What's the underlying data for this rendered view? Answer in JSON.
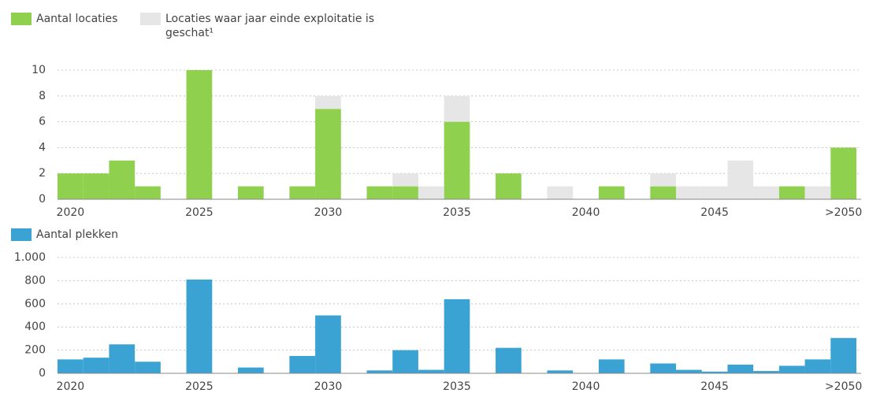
{
  "chart_data": [
    {
      "type": "bar",
      "stacked": true,
      "categories": [
        "2020",
        null,
        null,
        null,
        null,
        "2025",
        null,
        null,
        null,
        null,
        "2030",
        null,
        null,
        null,
        null,
        "2035",
        null,
        null,
        null,
        null,
        "2040",
        null,
        null,
        null,
        null,
        "2045",
        null,
        null,
        null,
        null,
        ">2050"
      ],
      "series": [
        {
          "name": "Aantal locaties",
          "color": "#8fd14f",
          "values": [
            2,
            2,
            3,
            1,
            0,
            10,
            0,
            1,
            0,
            1,
            7,
            0,
            1,
            1,
            0,
            6,
            0,
            2,
            0,
            0,
            0,
            1,
            0,
            1,
            0,
            0,
            0,
            0,
            1,
            0,
            4
          ]
        },
        {
          "name": "Locaties waar jaar einde exploitatie is geschat¹",
          "color": "#e6e6e6",
          "values": [
            0,
            0,
            0,
            0,
            0,
            0,
            0,
            0,
            0,
            0,
            1,
            0,
            0,
            1,
            1,
            2,
            0,
            0,
            0,
            1,
            0,
            0,
            0,
            1,
            1,
            1,
            3,
            1,
            0,
            1,
            0
          ]
        }
      ],
      "ylim": [
        0,
        10
      ],
      "yticks": [
        0,
        2,
        4,
        6,
        8,
        10
      ],
      "grid": true
    },
    {
      "type": "bar",
      "categories": [
        "2020",
        null,
        null,
        null,
        null,
        "2025",
        null,
        null,
        null,
        null,
        "2030",
        null,
        null,
        null,
        null,
        "2035",
        null,
        null,
        null,
        null,
        "2040",
        null,
        null,
        null,
        null,
        "2045",
        null,
        null,
        null,
        null,
        ">2050"
      ],
      "series": [
        {
          "name": "Aantal plekken",
          "color": "#3aa3d3",
          "values": [
            120,
            135,
            250,
            100,
            0,
            810,
            0,
            50,
            0,
            150,
            500,
            0,
            25,
            200,
            30,
            640,
            0,
            220,
            0,
            25,
            0,
            120,
            0,
            85,
            30,
            15,
            75,
            20,
            65,
            120,
            305
          ]
        }
      ],
      "ylim": [
        0,
        1000
      ],
      "yticks": [
        0,
        200,
        400,
        600,
        800,
        {
          "value": 1000,
          "label": "1.000"
        }
      ],
      "grid": true
    }
  ]
}
